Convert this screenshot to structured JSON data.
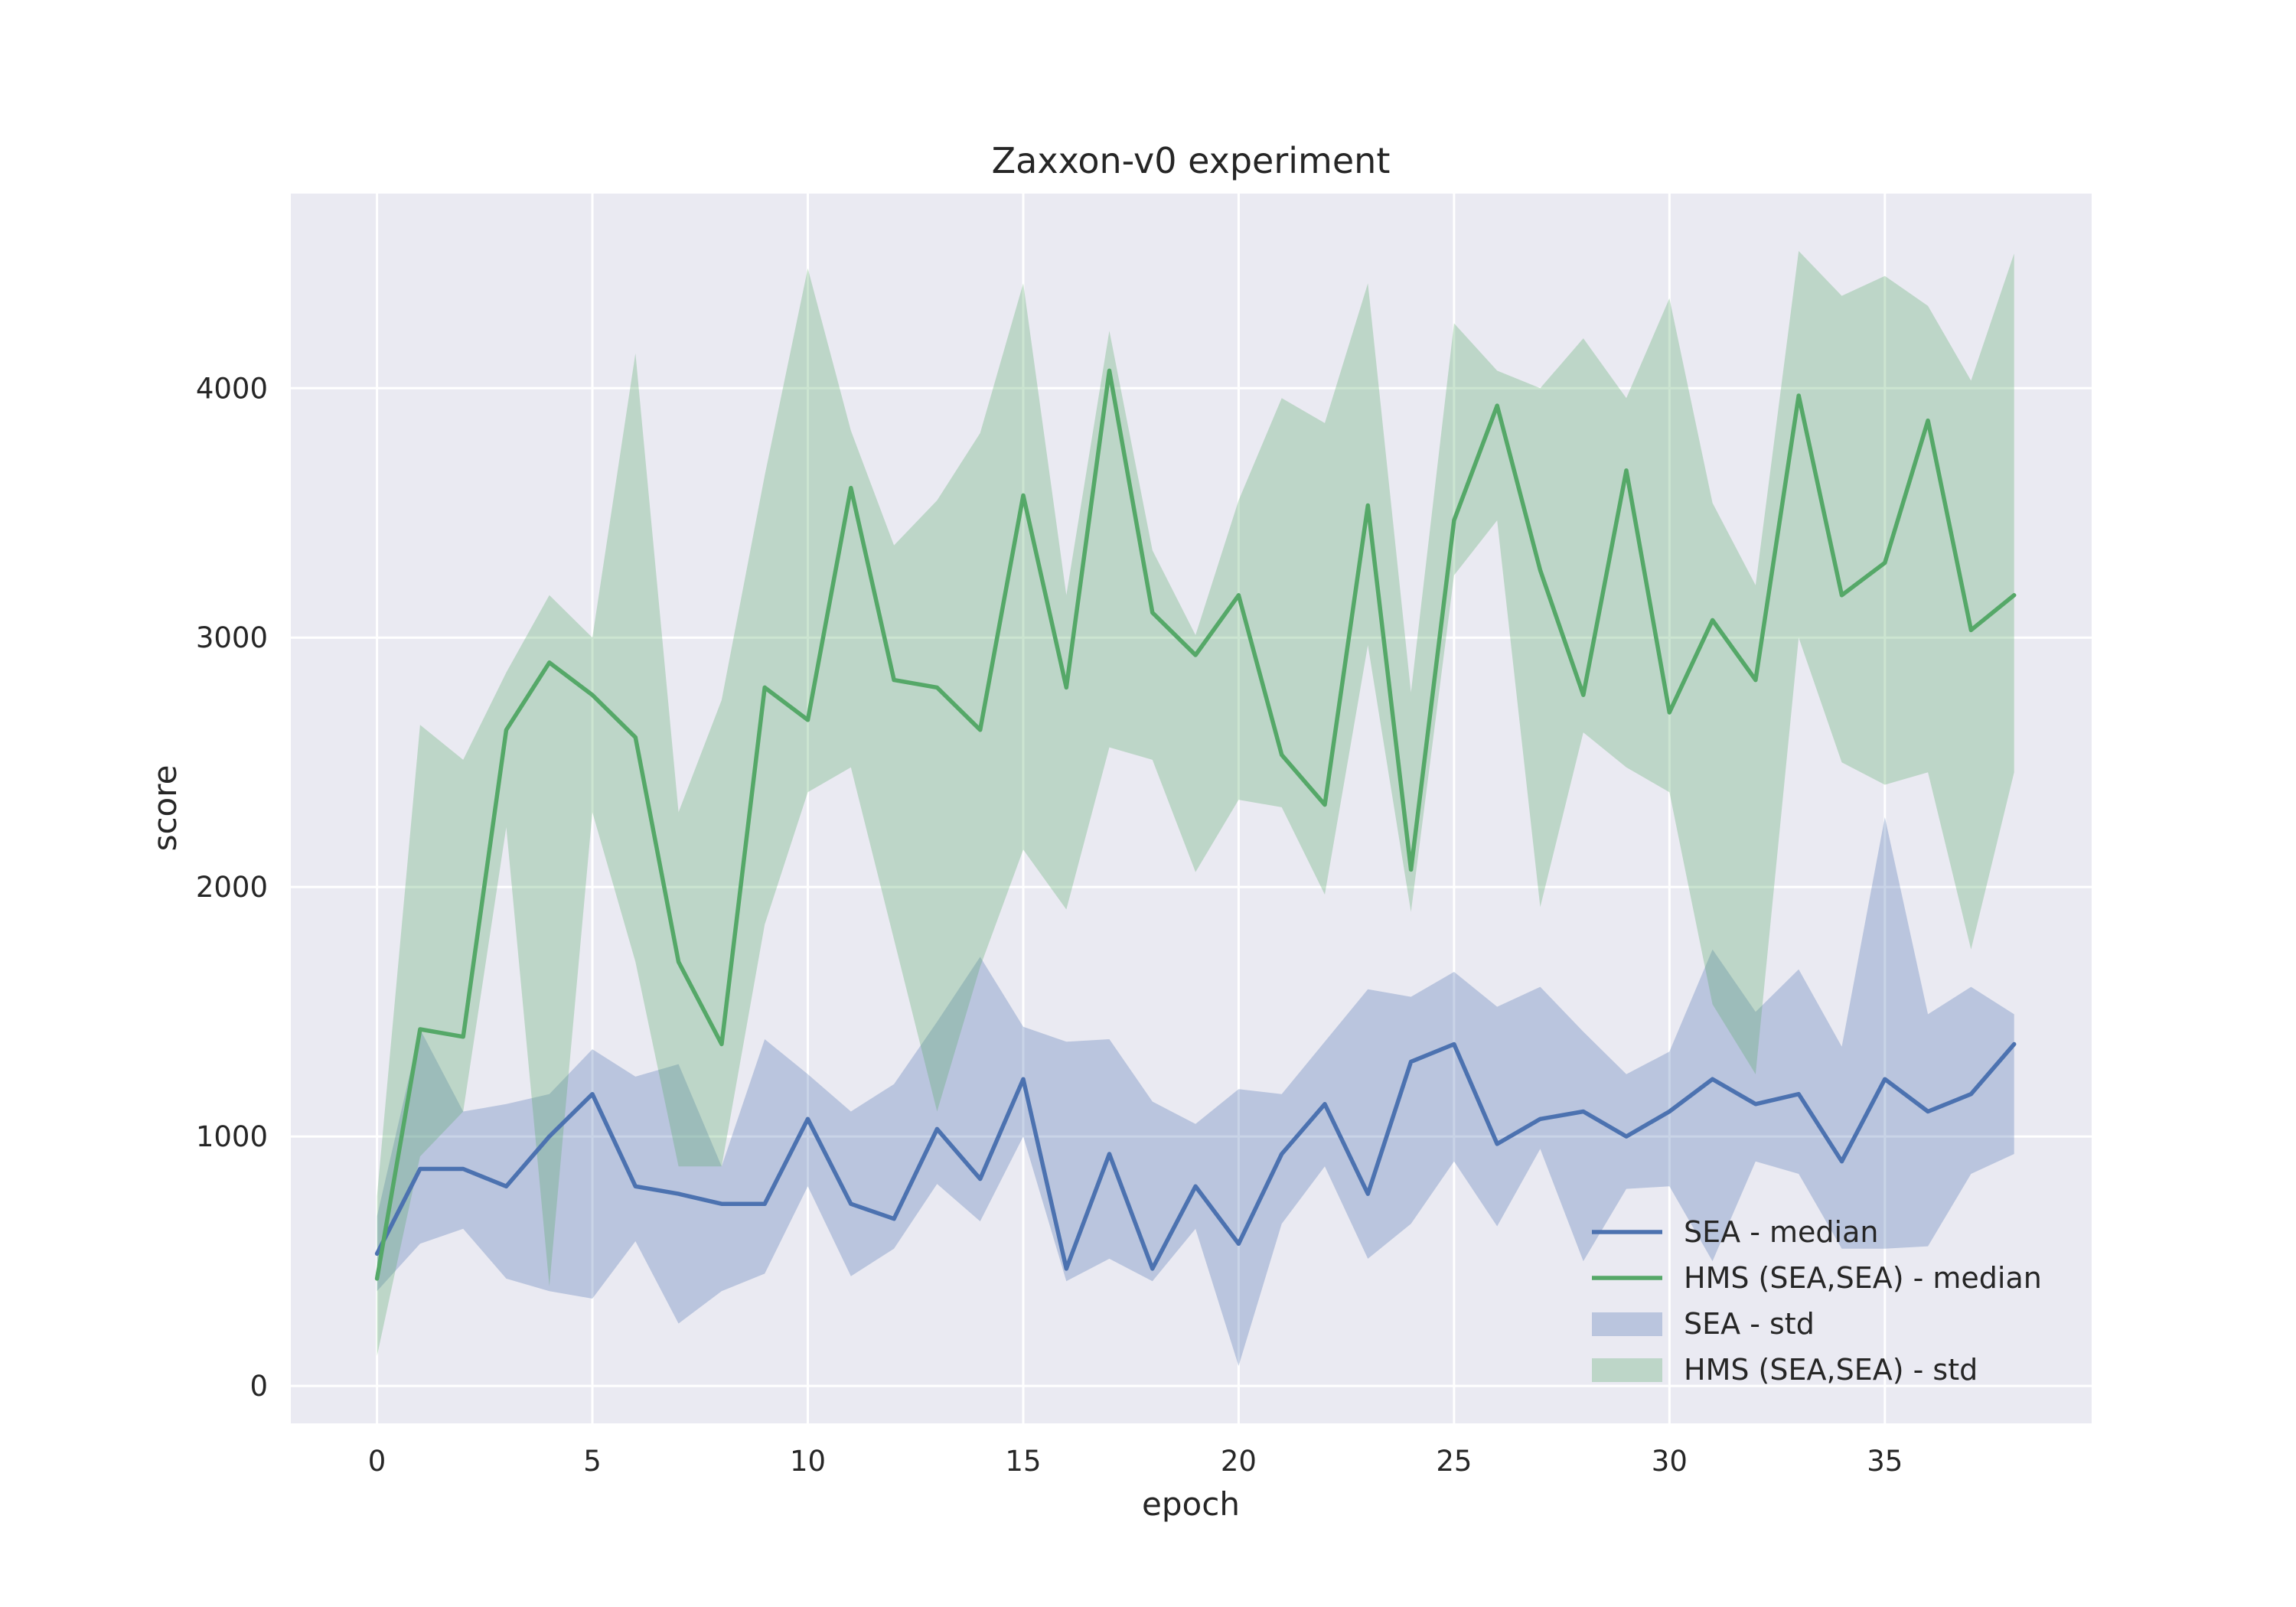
{
  "chart_data": {
    "type": "line",
    "title": "Zaxxon-v0 experiment",
    "xlabel": "epoch",
    "ylabel": "score",
    "xlim": [
      -2,
      39.8
    ],
    "ylim": [
      -150,
      4780
    ],
    "xticks": [
      0,
      5,
      10,
      15,
      20,
      25,
      30,
      35
    ],
    "yticks": [
      0,
      1000,
      2000,
      3000,
      4000
    ],
    "grid": true,
    "legend_position": "lower-right",
    "x": [
      0,
      1,
      2,
      3,
      4,
      5,
      6,
      7,
      8,
      9,
      10,
      11,
      12,
      13,
      14,
      15,
      16,
      17,
      18,
      19,
      20,
      21,
      22,
      23,
      24,
      25,
      26,
      27,
      28,
      29,
      30,
      31,
      32,
      33,
      34,
      35,
      36,
      37,
      38
    ],
    "series": [
      {
        "name": "SEA - median",
        "kind": "line",
        "color": "#4c72b0",
        "values": [
          530,
          870,
          870,
          800,
          1000,
          1170,
          800,
          770,
          730,
          730,
          1070,
          730,
          670,
          1030,
          830,
          1230,
          470,
          930,
          470,
          800,
          570,
          930,
          1130,
          770,
          1300,
          1370,
          970,
          1070,
          1100,
          1000,
          1100,
          1230,
          1130,
          1170,
          900,
          1230,
          1100,
          1170,
          1370
        ]
      },
      {
        "name": "HMS (SEA,SEA) - median",
        "kind": "line",
        "color": "#55a868",
        "values": [
          430,
          1430,
          1400,
          2630,
          2900,
          2770,
          2600,
          1700,
          1370,
          2800,
          2670,
          3600,
          2830,
          2800,
          2630,
          3570,
          2800,
          4070,
          3100,
          2930,
          3170,
          2530,
          2330,
          3530,
          2070,
          3470,
          3930,
          3270,
          2770,
          3670,
          2700,
          3070,
          2830,
          3970,
          3170,
          3300,
          3870,
          3030,
          3170
        ]
      },
      {
        "name": "SEA - std",
        "kind": "band",
        "color": "#4c72b0",
        "lower": [
          380,
          570,
          630,
          430,
          380,
          350,
          580,
          250,
          380,
          450,
          800,
          440,
          550,
          810,
          660,
          1000,
          420,
          510,
          420,
          630,
          80,
          650,
          880,
          510,
          650,
          900,
          640,
          950,
          500,
          790,
          800,
          500,
          900,
          850,
          550,
          550,
          560,
          850,
          930
        ],
        "upper": [
          680,
          1430,
          1100,
          1130,
          1170,
          1350,
          1240,
          1290,
          880,
          1390,
          1250,
          1100,
          1210,
          1460,
          1720,
          1440,
          1380,
          1390,
          1140,
          1050,
          1190,
          1170,
          1380,
          1590,
          1560,
          1660,
          1520,
          1600,
          1420,
          1250,
          1340,
          1750,
          1500,
          1670,
          1360,
          2280,
          1490,
          1600,
          1490
        ]
      },
      {
        "name": "HMS (SEA,SEA) - std",
        "kind": "band",
        "color": "#55a868",
        "lower": [
          120,
          920,
          1100,
          2240,
          400,
          2300,
          1700,
          880,
          880,
          1850,
          2380,
          2480,
          1790,
          1100,
          1680,
          2150,
          1910,
          2560,
          2510,
          2060,
          2350,
          2320,
          1970,
          2970,
          1900,
          3250,
          3470,
          1920,
          2620,
          2480,
          2380,
          1530,
          1250,
          3000,
          2500,
          2410,
          2460,
          1750,
          2460
        ],
        "upper": [
          760,
          2650,
          2510,
          2860,
          3170,
          3000,
          4140,
          2300,
          2750,
          3650,
          4480,
          3830,
          3370,
          3550,
          3820,
          4420,
          3170,
          4230,
          3350,
          3010,
          3550,
          3960,
          3860,
          4420,
          2780,
          4260,
          4070,
          4000,
          4200,
          3960,
          4360,
          3540,
          3210,
          4550,
          4370,
          4450,
          4330,
          4030,
          4540
        ]
      }
    ]
  }
}
